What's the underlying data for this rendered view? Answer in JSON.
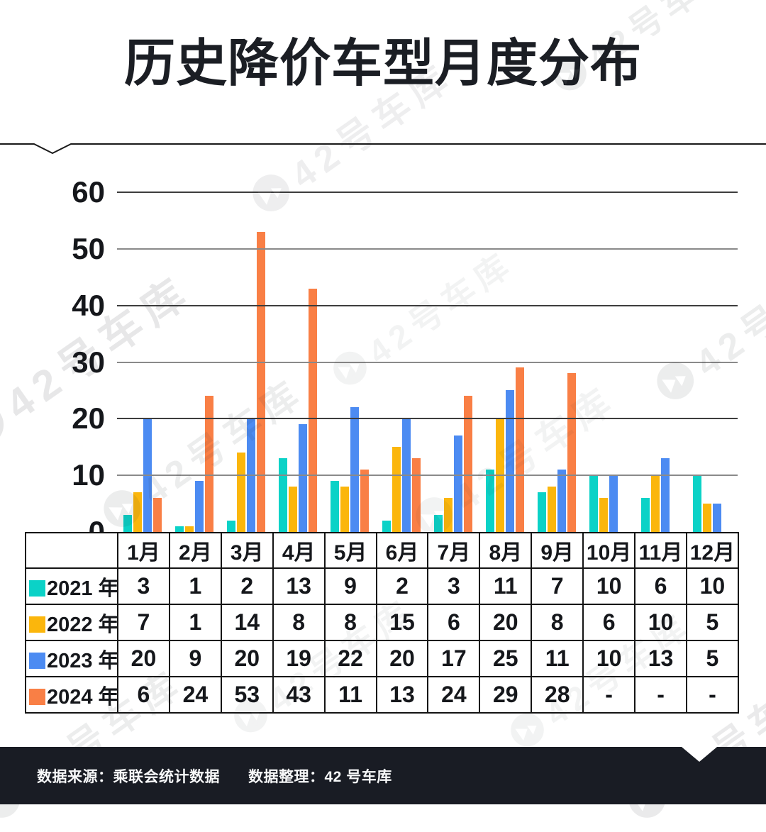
{
  "title": "历史降价车型月度分布",
  "watermark": {
    "text": "42号车库"
  },
  "footer": {
    "source_label": "数据来源：乘联会统计数据",
    "editor_label": "数据整理：42 号车库"
  },
  "chart_data": {
    "type": "bar",
    "title": "历史降价车型月度分布",
    "categories": [
      "1月",
      "2月",
      "3月",
      "4月",
      "5月",
      "6月",
      "7月",
      "8月",
      "9月",
      "10月",
      "11月",
      "12月"
    ],
    "series": [
      {
        "name": "2021 年",
        "color": "#0BD2C7",
        "values": [
          3,
          1,
          2,
          13,
          9,
          2,
          3,
          11,
          7,
          10,
          6,
          10
        ]
      },
      {
        "name": "2022 年",
        "color": "#FBB60C",
        "values": [
          7,
          1,
          14,
          8,
          8,
          15,
          6,
          20,
          8,
          6,
          10,
          5
        ]
      },
      {
        "name": "2023 年",
        "color": "#4C8BF2",
        "values": [
          20,
          9,
          20,
          19,
          22,
          20,
          17,
          25,
          11,
          10,
          13,
          5
        ]
      },
      {
        "name": "2024 年",
        "color": "#F97F45",
        "values": [
          6,
          24,
          53,
          43,
          11,
          13,
          24,
          29,
          28,
          null,
          null,
          null
        ]
      }
    ],
    "ylim": [
      0,
      60
    ],
    "yticks": [
      0,
      10,
      20,
      30,
      40,
      50,
      60
    ],
    "grid": true,
    "gridline_style": "alternating dark/gray horizontal lines",
    "legend_position": "table row headers below chart",
    "missing_value_display": "-"
  }
}
